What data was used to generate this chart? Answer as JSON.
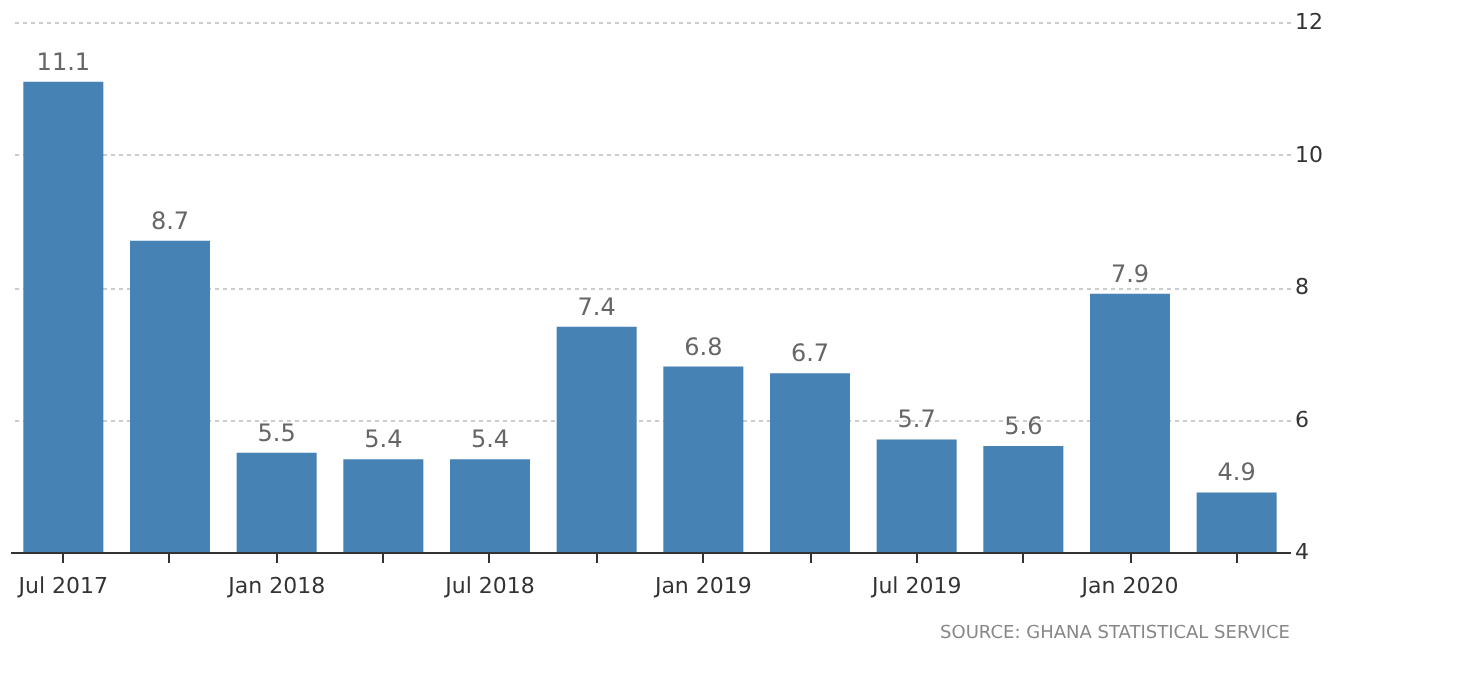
{
  "chart_data": {
    "type": "bar",
    "categories": [
      "Jul 2017",
      null,
      "Jan 2018",
      null,
      "Jul 2018",
      null,
      "Jan 2019",
      null,
      "Jul 2019",
      null,
      "Jan 2020",
      null
    ],
    "values": [
      11.1,
      8.7,
      5.5,
      5.4,
      5.4,
      7.4,
      6.8,
      6.7,
      5.7,
      5.6,
      7.9,
      4.9
    ],
    "color": "#4682b4",
    "ylim": [
      4,
      12
    ],
    "yticks": [
      4,
      6,
      8,
      10,
      12
    ],
    "grid": "y",
    "data_labels": true,
    "annotations": [
      "SOURCE: GHANA STATISTICAL SERVICE"
    ]
  }
}
